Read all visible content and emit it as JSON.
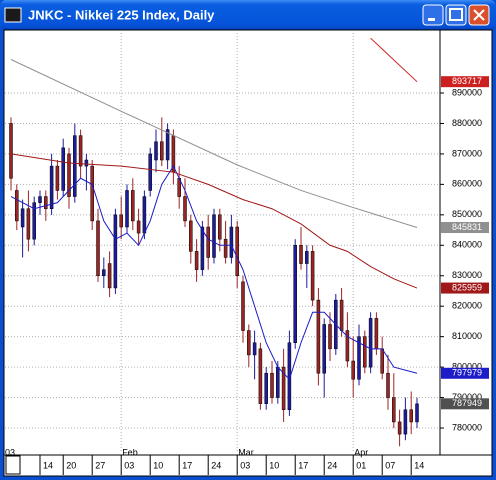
{
  "chart_data": {
    "type": "candlestick",
    "title": "JNKC - Nikkei 225 Index, Daily",
    "ylim": [
      771800,
      909700
    ],
    "yticks": [
      780000,
      790000,
      800000,
      810000,
      820000,
      830000,
      840000,
      850000,
      860000,
      870000,
      880000,
      890000
    ],
    "grid": true,
    "up_color": "#1c1c9c",
    "down_color": "#9c2424",
    "year_label": "03",
    "months": [
      {
        "x": 19,
        "label": "Feb"
      },
      {
        "x": 39,
        "label": "Mar"
      },
      {
        "x": 59,
        "label": "Apr"
      }
    ],
    "categories": [
      null,
      null,
      null,
      null,
      null,
      "14",
      null,
      null,
      null,
      "20",
      null,
      null,
      null,
      null,
      "27",
      null,
      null,
      null,
      null,
      "03",
      null,
      null,
      null,
      null,
      "10",
      null,
      null,
      null,
      null,
      "17",
      null,
      null,
      null,
      null,
      "24",
      null,
      null,
      null,
      null,
      "03",
      null,
      null,
      null,
      null,
      "10",
      null,
      null,
      null,
      null,
      "17",
      null,
      null,
      null,
      null,
      "24",
      null,
      null,
      null,
      null,
      "01",
      null,
      null,
      null,
      null,
      "07",
      null,
      null,
      null,
      null,
      "14",
      null
    ],
    "open": [
      880000,
      858000,
      846000,
      852000,
      842000,
      854000,
      856000,
      852000,
      866000,
      858000,
      870000,
      856000,
      876000,
      866000,
      866000,
      848000,
      830000,
      834000,
      826000,
      850000,
      846000,
      858000,
      848000,
      844000,
      858000,
      868000,
      874000,
      868000,
      876000,
      862000,
      856000,
      848000,
      838000,
      832000,
      846000,
      836000,
      850000,
      842000,
      836000,
      846000,
      828000,
      812000,
      804000,
      806000,
      788000,
      798000,
      790000,
      800000,
      786000,
      808000,
      840000,
      834000,
      838000,
      822000,
      798000,
      814000,
      806000,
      822000,
      812000,
      802000,
      796000,
      810000,
      800000,
      816000,
      806000,
      798000,
      790000,
      782000,
      778000,
      786000,
      782000
    ],
    "high": [
      882000,
      860000,
      855000,
      858000,
      856000,
      858000,
      858000,
      870000,
      868000,
      875000,
      872000,
      880000,
      878000,
      870000,
      868000,
      852000,
      836000,
      838000,
      852000,
      856000,
      860000,
      862000,
      852000,
      858000,
      872000,
      878000,
      882000,
      880000,
      878000,
      866000,
      862000,
      850000,
      842000,
      848000,
      850000,
      852000,
      852000,
      848000,
      850000,
      848000,
      830000,
      814000,
      812000,
      808000,
      800000,
      802000,
      802000,
      806000,
      812000,
      842000,
      846000,
      840000,
      840000,
      826000,
      816000,
      818000,
      824000,
      826000,
      818000,
      810000,
      814000,
      812000,
      818000,
      818000,
      810000,
      804000,
      798000,
      786000,
      790000,
      792000,
      790000
    ],
    "low": [
      858000,
      845000,
      836000,
      838000,
      840000,
      850000,
      848000,
      850000,
      855000,
      856000,
      852000,
      854000,
      862000,
      858000,
      845000,
      828000,
      826000,
      823000,
      824000,
      842000,
      844000,
      845000,
      840000,
      842000,
      856000,
      864000,
      866000,
      865000,
      860000,
      852000,
      846000,
      834000,
      828000,
      830000,
      832000,
      834000,
      838000,
      834000,
      834000,
      826000,
      808000,
      800000,
      796000,
      786000,
      786000,
      788000,
      788000,
      782000,
      784000,
      806000,
      832000,
      826000,
      820000,
      794000,
      790000,
      802000,
      804000,
      810000,
      800000,
      790000,
      794000,
      798000,
      798000,
      804000,
      796000,
      786000,
      780000,
      774000,
      776000,
      778000,
      780000
    ],
    "close": [
      862000,
      848000,
      852000,
      842000,
      854000,
      856000,
      852000,
      866000,
      858000,
      872000,
      856000,
      876000,
      866000,
      868000,
      848000,
      830000,
      832000,
      826000,
      850000,
      846000,
      858000,
      848000,
      844000,
      856000,
      870000,
      874000,
      868000,
      878000,
      864000,
      856000,
      848000,
      838000,
      832000,
      846000,
      836000,
      850000,
      842000,
      836000,
      846000,
      830000,
      812000,
      804000,
      808000,
      788000,
      798000,
      790000,
      800000,
      786000,
      808000,
      840000,
      834000,
      838000,
      822000,
      798000,
      814000,
      806000,
      822000,
      812000,
      802000,
      796000,
      810000,
      800000,
      816000,
      806000,
      798000,
      790000,
      782000,
      778000,
      786000,
      782000,
      787949
    ],
    "moving_averages": [
      {
        "color": "#1c1cc8",
        "x": [
          0,
          4,
          8,
          12,
          14,
          16,
          18,
          20,
          22,
          24,
          26,
          28,
          30,
          32,
          34,
          36,
          38,
          40,
          42,
          44,
          46,
          48,
          50,
          52,
          54,
          56,
          58,
          60,
          62,
          64,
          66,
          70
        ],
        "values": [
          856000,
          852000,
          854000,
          862000,
          860000,
          848000,
          842000,
          844000,
          840000,
          848000,
          860000,
          866000,
          858000,
          848000,
          842000,
          840000,
          840000,
          832000,
          820000,
          808000,
          800000,
          796000,
          808000,
          818000,
          818000,
          814000,
          810000,
          808000,
          806000,
          806000,
          800000,
          797979
        ]
      },
      {
        "color": "#a01818",
        "x": [
          0,
          10,
          19,
          28,
          34,
          40,
          45,
          50,
          55,
          58,
          62,
          66,
          70
        ],
        "values": [
          870000,
          867000,
          866000,
          864000,
          860000,
          855000,
          852000,
          847000,
          840000,
          838000,
          833000,
          829000,
          825959
        ]
      },
      {
        "color": "#909090",
        "x": [
          0,
          19,
          39,
          50,
          58,
          70
        ],
        "values": [
          901000,
          884000,
          866400,
          858000,
          853000,
          845831
        ]
      },
      {
        "color": "#cc2020",
        "x": [
          62,
          70
        ],
        "values": [
          908000,
          893717
        ]
      }
    ]
  }
}
